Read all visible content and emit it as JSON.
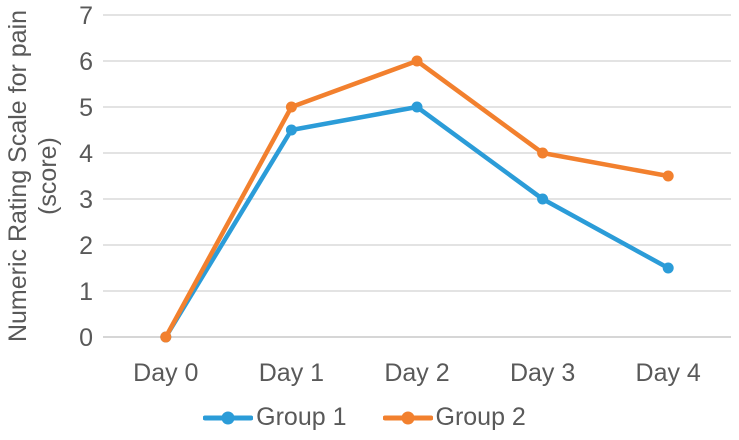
{
  "chart_data": {
    "type": "line",
    "title": "",
    "categories": [
      "Day 0",
      "Day 1",
      "Day 2",
      "Day 3",
      "Day 4"
    ],
    "series": [
      {
        "name": "Group 1",
        "color": "#2B9CD8",
        "values": [
          0,
          4.5,
          5,
          3,
          1.5
        ]
      },
      {
        "name": "Group 2",
        "color": "#F2802E",
        "values": [
          0,
          5,
          6,
          4,
          3.5
        ]
      }
    ],
    "xlabel": "",
    "ylabel": "Numeric Rating Scale for pain (score)",
    "ylabel_line1": "Numeric Rating Scale for pain",
    "ylabel_line2": "(score)",
    "ylim": [
      0,
      7
    ],
    "yticks": [
      0,
      1,
      2,
      3,
      4,
      5,
      6,
      7
    ],
    "grid": true,
    "legend_position": "bottom",
    "colors": {
      "gridline": "#DADADA",
      "axis_line": "#C9C9C9",
      "text": "#595959",
      "background": "#FFFFFF"
    }
  }
}
